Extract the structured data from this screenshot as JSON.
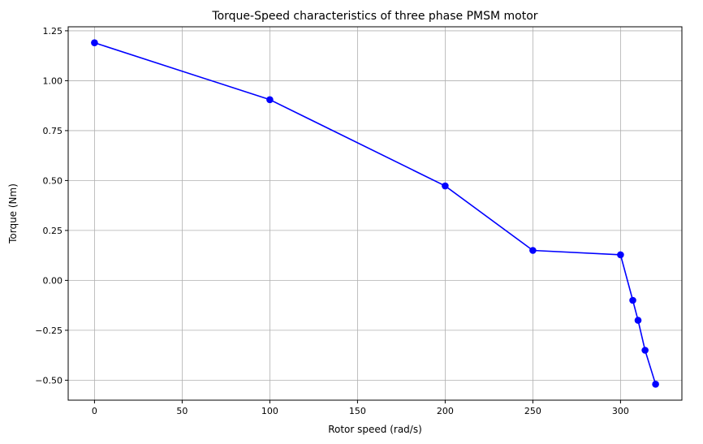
{
  "chart_data": {
    "type": "line",
    "title": "Torque-Speed characteristics of three phase PMSM motor",
    "xlabel": "Rotor speed (rad/s)",
    "ylabel": "Torque (Nm)",
    "xlim": [
      -15,
      335
    ],
    "ylim": [
      -0.6,
      1.27
    ],
    "xticks": [
      0,
      50,
      100,
      150,
      200,
      250,
      300
    ],
    "yticks": [
      -0.5,
      -0.25,
      0.0,
      0.25,
      0.5,
      0.75,
      1.0,
      1.25
    ],
    "xtick_labels": [
      "0",
      "50",
      "100",
      "150",
      "200",
      "250",
      "300"
    ],
    "ytick_labels": [
      "−0.50",
      "−0.25",
      "0.00",
      "0.25",
      "0.50",
      "0.75",
      "1.00",
      "1.25"
    ],
    "grid": true,
    "series": [
      {
        "color": "#0000ff",
        "marker": "circle",
        "x": [
          0,
          100,
          200,
          250,
          300,
          307,
          310,
          314,
          320
        ],
        "y": [
          1.19,
          0.905,
          0.473,
          0.15,
          0.128,
          -0.1,
          -0.2,
          -0.35,
          -0.52
        ]
      }
    ]
  }
}
